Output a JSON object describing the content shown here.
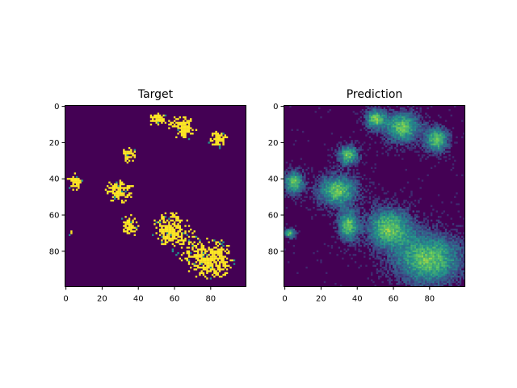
{
  "chart_data": [
    {
      "type": "heatmap",
      "title": "Target",
      "colormap": "viridis",
      "value_range": [
        0,
        1
      ],
      "grid_size": [
        100,
        100
      ],
      "xlim": [
        0,
        99
      ],
      "ylim": [
        99,
        0
      ],
      "xticks": [
        0,
        20,
        40,
        60,
        80
      ],
      "yticks": [
        0,
        20,
        40,
        60,
        80
      ],
      "grid": false,
      "colors": {
        "low": "#440154",
        "mid": "#21918c",
        "high": "#fde725"
      },
      "description_regions_high": [
        {
          "x": [
            45,
            55
          ],
          "y": [
            2,
            12
          ]
        },
        {
          "x": [
            55,
            75
          ],
          "y": [
            3,
            20
          ]
        },
        {
          "x": [
            78,
            90
          ],
          "y": [
            12,
            25
          ]
        },
        {
          "x": [
            30,
            40
          ],
          "y": [
            22,
            32
          ]
        },
        {
          "x": [
            0,
            10
          ],
          "y": [
            36,
            48
          ]
        },
        {
          "x": [
            18,
            40
          ],
          "y": [
            38,
            55
          ]
        },
        {
          "x": [
            30,
            40
          ],
          "y": [
            58,
            74
          ]
        },
        {
          "x": [
            45,
            70
          ],
          "y": [
            56,
            78
          ]
        },
        {
          "x": [
            60,
            99
          ],
          "y": [
            70,
            99
          ]
        },
        {
          "x": [
            0,
            5
          ],
          "y": [
            68,
            72
          ]
        }
      ]
    },
    {
      "type": "heatmap",
      "title": "Prediction",
      "colormap": "viridis",
      "value_range": [
        0,
        1
      ],
      "grid_size": [
        100,
        100
      ],
      "xlim": [
        0,
        99
      ],
      "ylim": [
        99,
        0
      ],
      "xticks": [
        0,
        20,
        40,
        60,
        80
      ],
      "yticks": [
        0,
        20,
        40,
        60,
        80
      ],
      "grid": false,
      "colors": {
        "low": "#440154",
        "mid": "#21918c",
        "high": "#fde725"
      }
    }
  ]
}
